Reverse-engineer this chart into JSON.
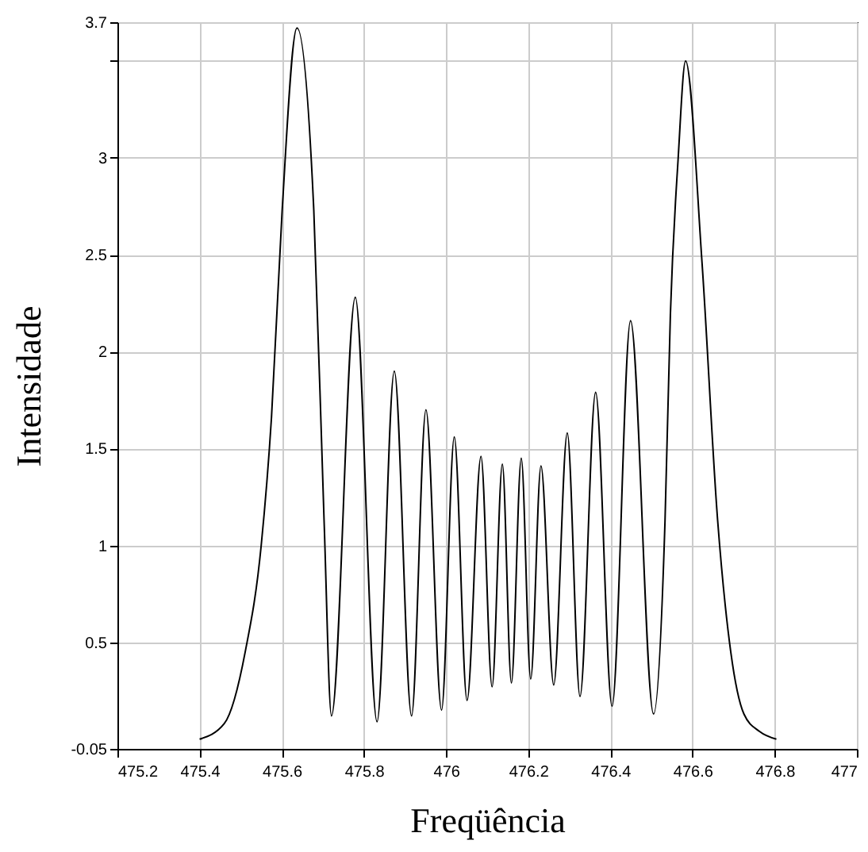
{
  "chart_data": {
    "type": "line",
    "xlabel": "Freqüência",
    "ylabel": "Intensidade",
    "x": [
      475.4,
      475.46,
      475.511,
      475.55,
      475.575,
      475.601,
      475.637,
      475.678,
      475.703,
      475.721,
      475.779,
      475.832,
      475.874,
      475.916,
      475.951,
      475.989,
      476.02,
      476.051,
      476.085,
      476.112,
      476.137,
      476.159,
      476.183,
      476.206,
      476.231,
      476.262,
      476.295,
      476.326,
      476.364,
      476.404,
      476.449,
      476.505,
      476.533,
      476.546,
      476.565,
      476.583,
      476.623,
      476.661,
      476.693,
      476.725,
      476.763,
      476.804
    ],
    "series": [
      {
        "color": "#000000",
        "values": [
          0,
          0.08,
          0.45,
          1.0,
          1.66,
          2.73,
          3.67,
          2.73,
          1.13,
          0.12,
          2.28,
          0.09,
          1.9,
          0.12,
          1.7,
          0.15,
          1.56,
          0.2,
          1.46,
          0.27,
          1.42,
          0.29,
          1.45,
          0.31,
          1.41,
          0.28,
          1.58,
          0.22,
          1.79,
          0.17,
          2.16,
          0.13,
          1.13,
          2.19,
          3.0,
          3.5,
          2.46,
          1.13,
          0.45,
          0.13,
          0.04,
          0
        ]
      }
    ],
    "xlim": [
      475.2,
      477
    ],
    "xticks": [
      475.2,
      475.4,
      475.6,
      475.8,
      476,
      476.2,
      476.4,
      476.6,
      476.8,
      477
    ],
    "ylim": [
      -0.05,
      3.7
    ],
    "yticks": [
      -0.05,
      0.5,
      1,
      1.5,
      2,
      2.5,
      3,
      {
        "value": 3.5,
        "label": null
      },
      3.7
    ],
    "grid": true,
    "marker": "none",
    "line_style": "solid"
  }
}
